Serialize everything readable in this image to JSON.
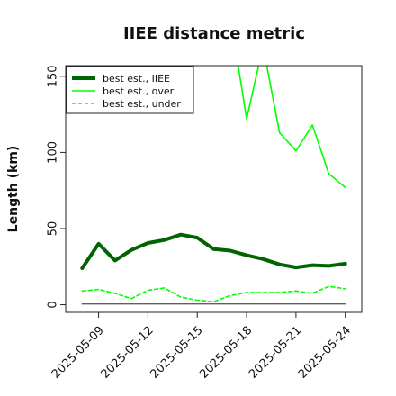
{
  "chart_data": {
    "type": "line",
    "title": "IIEE distance metric",
    "ylabel": "Length (km)",
    "xlabel": "",
    "ylim": [
      -5,
      157
    ],
    "xlim": [
      "2025-05-07",
      "2025-05-25"
    ],
    "yticks": [
      0,
      50,
      100,
      150
    ],
    "xticks": [
      "2025-05-09",
      "2025-05-12",
      "2025-05-15",
      "2025-05-18",
      "2025-05-21",
      "2025-05-24"
    ],
    "legend_position": "top-left",
    "grid": false,
    "x": [
      "2025-05-08",
      "2025-05-09",
      "2025-05-10",
      "2025-05-11",
      "2025-05-12",
      "2025-05-13",
      "2025-05-14",
      "2025-05-15",
      "2025-05-16",
      "2025-05-17",
      "2025-05-18",
      "2025-05-19",
      "2025-05-20",
      "2025-05-21",
      "2025-05-22",
      "2025-05-23",
      "2025-05-24"
    ],
    "series": [
      {
        "name": "best est., IIEE",
        "color": "#006400",
        "style": "solid-thick",
        "values": [
          24,
          40,
          29,
          36,
          40.5,
          42.5,
          46,
          44,
          36.5,
          35.5,
          32.5,
          30,
          26.5,
          24.5,
          26,
          25.5,
          27
        ]
      },
      {
        "name": "best est., over",
        "color": "#00ff00",
        "style": "solid",
        "values": [
          null,
          null,
          null,
          null,
          null,
          null,
          null,
          null,
          null,
          190,
          122,
          170,
          113,
          101,
          118,
          86,
          77
        ]
      },
      {
        "name": "best est., under",
        "color": "#00ff00",
        "style": "dashed",
        "values": [
          9,
          10,
          7.5,
          4,
          9.5,
          11,
          5,
          3,
          2,
          6,
          8,
          8,
          8,
          9,
          7.5,
          12,
          10.5
        ]
      },
      {
        "name": "",
        "color": "#606060",
        "style": "solid-thin",
        "values": [
          0.5,
          0.5,
          0.5,
          0.5,
          0.5,
          0.5,
          0.5,
          0.5,
          0.5,
          0.5,
          0.5,
          0.5,
          0.5,
          0.5,
          0.5,
          0.5,
          0.5
        ]
      }
    ]
  }
}
